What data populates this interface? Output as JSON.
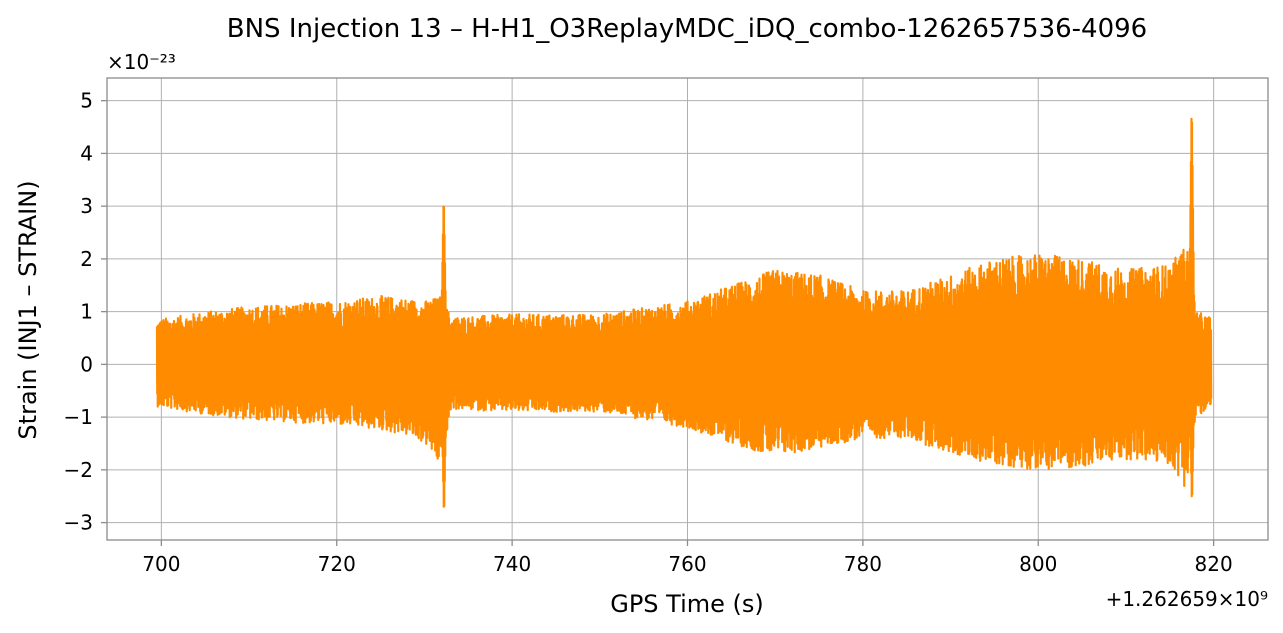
{
  "chart_data": {
    "type": "line",
    "title": "BNS Injection 13 – H-H1_O3ReplayMDC_iDQ_combo-1262657536-4096",
    "xlabel": "GPS Time (s)",
    "ylabel": "Strain (INJ1 – STRAIN)",
    "x_offset_label": "+1.262659×10⁹",
    "y_scale_label": "×10⁻²³",
    "xlim": [
      693.8,
      826.2
    ],
    "ylim": [
      -3.33,
      5.43
    ],
    "x_ticks": [
      700,
      720,
      740,
      760,
      780,
      800,
      820
    ],
    "x_tick_labels": [
      "700",
      "720",
      "740",
      "760",
      "780",
      "800",
      "820"
    ],
    "y_ticks": [
      -3,
      -2,
      -1,
      0,
      1,
      2,
      3,
      4,
      5
    ],
    "y_tick_labels": [
      "−3",
      "−2",
      "−1",
      "0",
      "1",
      "2",
      "3",
      "4",
      "5"
    ],
    "grid": true,
    "series": [
      {
        "color": "#ff8c00",
        "x_range": [
          699.5,
          819.7
        ],
        "envelope": [
          {
            "x": 699.5,
            "max": 0.85,
            "min": -0.8
          },
          {
            "x": 705,
            "max": 1.0,
            "min": -0.95
          },
          {
            "x": 710,
            "max": 1.1,
            "min": -1.05
          },
          {
            "x": 715,
            "max": 1.15,
            "min": -1.1
          },
          {
            "x": 720,
            "max": 1.2,
            "min": -1.15
          },
          {
            "x": 725,
            "max": 1.3,
            "min": -1.25
          },
          {
            "x": 728,
            "max": 1.25,
            "min": -1.35
          },
          {
            "x": 730,
            "max": 1.2,
            "min": -1.5
          },
          {
            "x": 732,
            "max": 1.3,
            "min": -2.0
          },
          {
            "x": 733,
            "max": 0.9,
            "min": -0.85
          },
          {
            "x": 740,
            "max": 0.95,
            "min": -0.9
          },
          {
            "x": 750,
            "max": 0.95,
            "min": -0.9
          },
          {
            "x": 760,
            "max": 1.2,
            "min": -1.2
          },
          {
            "x": 765,
            "max": 1.5,
            "min": -1.5
          },
          {
            "x": 770,
            "max": 1.8,
            "min": -1.75
          },
          {
            "x": 775,
            "max": 1.7,
            "min": -1.6
          },
          {
            "x": 780,
            "max": 1.4,
            "min": -1.4
          },
          {
            "x": 785,
            "max": 1.4,
            "min": -1.4
          },
          {
            "x": 790,
            "max": 1.7,
            "min": -1.7
          },
          {
            "x": 795,
            "max": 2.0,
            "min": -1.9
          },
          {
            "x": 800,
            "max": 2.1,
            "min": -2.0
          },
          {
            "x": 805,
            "max": 2.0,
            "min": -1.95
          },
          {
            "x": 810,
            "max": 1.8,
            "min": -1.8
          },
          {
            "x": 815,
            "max": 1.9,
            "min": -1.9
          },
          {
            "x": 817,
            "max": 2.3,
            "min": -2.4
          },
          {
            "x": 818,
            "max": 1.0,
            "min": -1.0
          },
          {
            "x": 819.7,
            "max": 0.9,
            "min": -0.85
          }
        ],
        "spikes": [
          {
            "x": 732.2,
            "max": 3.25,
            "min": -2.93
          },
          {
            "x": 817.5,
            "max": 5.03,
            "min": -2.7
          }
        ]
      }
    ]
  }
}
